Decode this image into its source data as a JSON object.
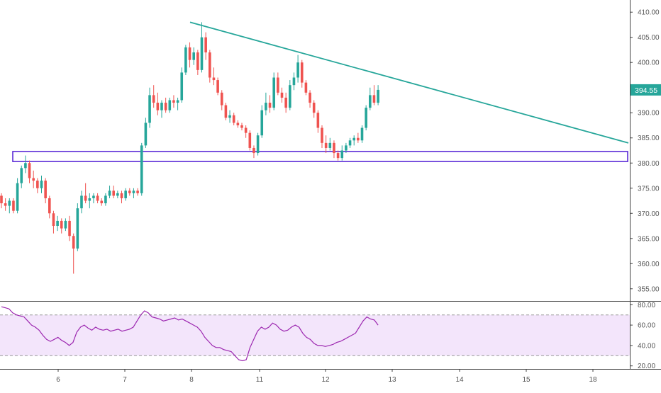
{
  "chart_data": [
    {
      "type": "candlestick",
      "y_axis_ticks": [
        "410.00",
        "405.00",
        "400.00",
        "395.00",
        "390.00",
        "385.00",
        "380.00",
        "375.00",
        "370.00",
        "365.00",
        "360.00",
        "355.00"
      ],
      "ylim": [
        353,
        412
      ],
      "last_price": "394.55",
      "last_price_color": "#26a69a",
      "up_color": "#26a69a",
      "down_color": "#ef5350",
      "x_axis_ticks": [
        "6",
        "7",
        "8",
        "11",
        "12",
        "13",
        "14",
        "15",
        "18"
      ],
      "candles": [
        [
          373.5,
          374.0,
          371.0,
          372.0
        ],
        [
          372.0,
          373.0,
          370.5,
          371.5
        ],
        [
          371.5,
          373.0,
          370.0,
          372.5
        ],
        [
          372.5,
          373.0,
          370.0,
          370.5
        ],
        [
          370.5,
          377.0,
          370.0,
          376.0
        ],
        [
          376.0,
          379.5,
          375.0,
          379.0
        ],
        [
          379.0,
          381.5,
          378.0,
          380.0
        ],
        [
          380.0,
          380.5,
          376.0,
          377.0
        ],
        [
          377.0,
          378.5,
          375.0,
          376.5
        ],
        [
          376.5,
          377.0,
          374.0,
          375.0
        ],
        [
          375.0,
          377.5,
          374.0,
          376.5
        ],
        [
          376.5,
          377.0,
          372.0,
          373.0
        ],
        [
          373.0,
          373.5,
          369.0,
          370.0
        ],
        [
          370.0,
          370.5,
          366.0,
          367.5
        ],
        [
          367.5,
          369.5,
          366.5,
          368.5
        ],
        [
          368.5,
          369.0,
          366.0,
          367.0
        ],
        [
          367.0,
          369.0,
          366.5,
          368.5
        ],
        [
          368.5,
          369.5,
          364.5,
          365.5
        ],
        [
          365.5,
          366.0,
          358.0,
          363.0
        ],
        [
          363.0,
          372.0,
          362.5,
          371.0
        ],
        [
          371.0,
          374.5,
          370.0,
          373.5
        ],
        [
          373.5,
          376.0,
          372.0,
          372.5
        ],
        [
          372.5,
          374.0,
          371.0,
          373.0
        ],
        [
          373.0,
          374.0,
          372.0,
          373.5
        ],
        [
          373.5,
          374.0,
          372.0,
          372.5
        ],
        [
          372.5,
          373.0,
          371.5,
          372.0
        ],
        [
          372.0,
          374.0,
          371.5,
          373.5
        ],
        [
          373.5,
          375.5,
          373.0,
          374.5
        ],
        [
          374.5,
          375.5,
          373.0,
          373.5
        ],
        [
          373.5,
          374.5,
          373.0,
          374.0
        ],
        [
          374.0,
          374.5,
          372.0,
          373.0
        ],
        [
          373.0,
          375.0,
          372.5,
          374.5
        ],
        [
          374.5,
          375.0,
          373.5,
          374.0
        ],
        [
          374.0,
          375.0,
          373.0,
          374.5
        ],
        [
          374.5,
          375.0,
          373.5,
          374.0
        ],
        [
          374.0,
          384.0,
          373.5,
          383.5
        ],
        [
          383.5,
          389.0,
          383.0,
          388.0
        ],
        [
          388.0,
          395.0,
          387.0,
          393.5
        ],
        [
          393.5,
          395.5,
          391.0,
          392.0
        ],
        [
          392.0,
          394.0,
          389.5,
          390.5
        ],
        [
          390.5,
          392.5,
          389.0,
          392.0
        ],
        [
          392.0,
          393.0,
          390.0,
          390.5
        ],
        [
          390.5,
          393.0,
          390.0,
          392.5
        ],
        [
          392.5,
          393.5,
          391.0,
          392.0
        ],
        [
          392.0,
          393.0,
          390.5,
          392.5
        ],
        [
          392.5,
          399.0,
          392.0,
          398.0
        ],
        [
          398.0,
          403.5,
          397.5,
          403.0
        ],
        [
          403.0,
          404.0,
          399.0,
          400.5
        ],
        [
          400.5,
          403.0,
          399.5,
          402.0
        ],
        [
          402.0,
          402.5,
          397.5,
          398.5
        ],
        [
          398.5,
          408.0,
          398.0,
          405.0
        ],
        [
          405.0,
          406.0,
          400.5,
          402.0
        ],
        [
          402.0,
          402.5,
          396.0,
          397.0
        ],
        [
          397.0,
          399.0,
          395.5,
          396.5
        ],
        [
          396.5,
          397.0,
          393.5,
          394.0
        ],
        [
          394.0,
          394.5,
          390.5,
          391.5
        ],
        [
          391.5,
          392.0,
          388.5,
          389.0
        ],
        [
          389.0,
          390.5,
          388.0,
          389.5
        ],
        [
          389.5,
          390.0,
          387.5,
          388.0
        ],
        [
          388.0,
          388.5,
          387.0,
          387.5
        ],
        [
          387.5,
          388.0,
          386.5,
          387.0
        ],
        [
          387.0,
          387.5,
          385.0,
          386.0
        ],
        [
          386.0,
          386.5,
          382.5,
          383.0
        ],
        [
          383.0,
          383.5,
          381.0,
          382.0
        ],
        [
          382.0,
          386.0,
          381.5,
          385.5
        ],
        [
          385.5,
          391.5,
          385.0,
          390.5
        ],
        [
          390.5,
          394.0,
          389.5,
          392.0
        ],
        [
          392.0,
          393.5,
          390.0,
          391.0
        ],
        [
          391.0,
          398.0,
          390.5,
          397.0
        ],
        [
          397.0,
          398.0,
          393.5,
          394.0
        ],
        [
          394.0,
          395.0,
          392.0,
          393.0
        ],
        [
          393.0,
          394.0,
          390.0,
          391.0
        ],
        [
          391.0,
          396.5,
          390.5,
          395.5
        ],
        [
          395.5,
          398.0,
          394.5,
          397.0
        ],
        [
          397.0,
          401.5,
          396.0,
          400.0
        ],
        [
          400.0,
          400.5,
          395.0,
          396.0
        ],
        [
          396.0,
          396.5,
          393.5,
          394.0
        ],
        [
          394.0,
          394.5,
          391.0,
          392.0
        ],
        [
          392.0,
          392.5,
          389.0,
          390.0
        ],
        [
          390.0,
          390.5,
          386.0,
          387.0
        ],
        [
          387.0,
          387.5,
          383.0,
          384.0
        ],
        [
          384.0,
          385.5,
          382.0,
          383.0
        ],
        [
          383.0,
          385.0,
          382.5,
          384.0
        ],
        [
          384.0,
          384.5,
          381.0,
          382.0
        ],
        [
          382.0,
          382.5,
          380.5,
          381.0
        ],
        [
          381.0,
          383.5,
          380.5,
          382.5
        ],
        [
          382.5,
          384.0,
          382.0,
          383.5
        ],
        [
          383.5,
          385.0,
          383.0,
          384.5
        ],
        [
          384.5,
          385.5,
          383.5,
          385.0
        ],
        [
          385.0,
          386.0,
          384.0,
          384.5
        ],
        [
          384.5,
          387.5,
          384.0,
          387.0
        ],
        [
          387.0,
          391.5,
          386.5,
          391.0
        ],
        [
          391.0,
          395.0,
          390.5,
          393.5
        ],
        [
          393.5,
          395.5,
          391.5,
          392.0
        ],
        [
          392.0,
          395.5,
          391.5,
          394.55
        ]
      ],
      "trendline": {
        "from": [
          50,
          408.0
        ],
        "to": [
          130,
          384.0
        ],
        "color": "#26a69a"
      },
      "support_zone": {
        "from_index": 0,
        "to_index": 130,
        "top": 382.3,
        "bottom": 380.3,
        "color": "#5b2bd6"
      },
      "rsi": {
        "ticks": [
          "80.00",
          "60.00",
          "40.00",
          "20.00"
        ],
        "ylim": [
          17,
          83
        ],
        "upper_band": 70,
        "lower_band": 30,
        "line_color": "#9c27b0",
        "band_fill": "#f3e5fb",
        "values": [
          78,
          77,
          76,
          72,
          70,
          69,
          68,
          64,
          60,
          58,
          55,
          50,
          46,
          44,
          46,
          48,
          45,
          43,
          40,
          43,
          53,
          58,
          60,
          57,
          55,
          58,
          56,
          55,
          56,
          54,
          55,
          56,
          54,
          55,
          56,
          58,
          64,
          70,
          74,
          72,
          68,
          67,
          66,
          64,
          65,
          66,
          67,
          65,
          66,
          64,
          62,
          60,
          58,
          54,
          48,
          44,
          40,
          38,
          38,
          36,
          35,
          34,
          30,
          26,
          25,
          26,
          38,
          46,
          54,
          58,
          56,
          58,
          62,
          60,
          56,
          54,
          55,
          58,
          60,
          58,
          52,
          48,
          46,
          42,
          40,
          40,
          39,
          40,
          41,
          43,
          44,
          46,
          48,
          50,
          52,
          58,
          64,
          68,
          66,
          65,
          60
        ]
      }
    }
  ]
}
